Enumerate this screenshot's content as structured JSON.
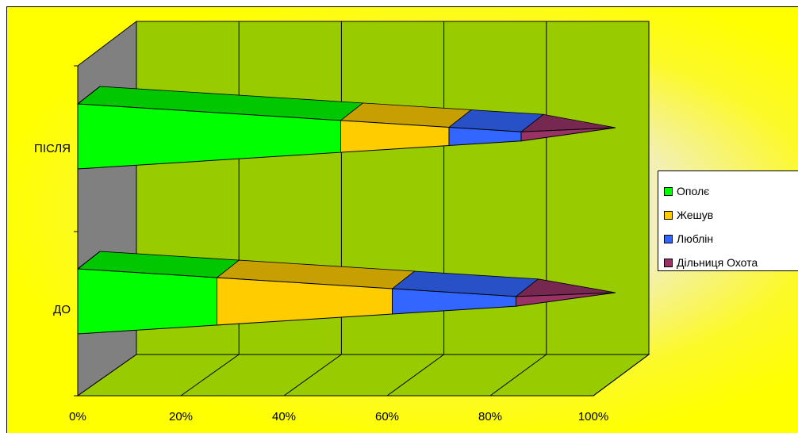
{
  "chart_data": {
    "type": "bar",
    "subtype": "100%-stacked-horizontal-3d-cone",
    "categories": [
      "ДО",
      "ПІСЛЯ"
    ],
    "series": [
      {
        "name": "Ополє",
        "values": [
          27,
          51
        ],
        "color": "#00ff00"
      },
      {
        "name": "Жешув",
        "values": [
          34,
          21
        ],
        "color": "#ffcc00"
      },
      {
        "name": "Люблін",
        "values": [
          24,
          14
        ],
        "color": "#3366ff"
      },
      {
        "name": "Дільниця Охота",
        "values": [
          15,
          14
        ],
        "color": "#993366"
      }
    ],
    "x_ticks": [
      "0%",
      "20%",
      "40%",
      "60%",
      "80%",
      "100%"
    ],
    "xlim": [
      0,
      100
    ],
    "grid": true,
    "legend": "right",
    "colors": {
      "background": "#ffff00",
      "plot_wall": "#99cc00",
      "side_wall": "#808080",
      "floor": "#99cc00"
    }
  }
}
